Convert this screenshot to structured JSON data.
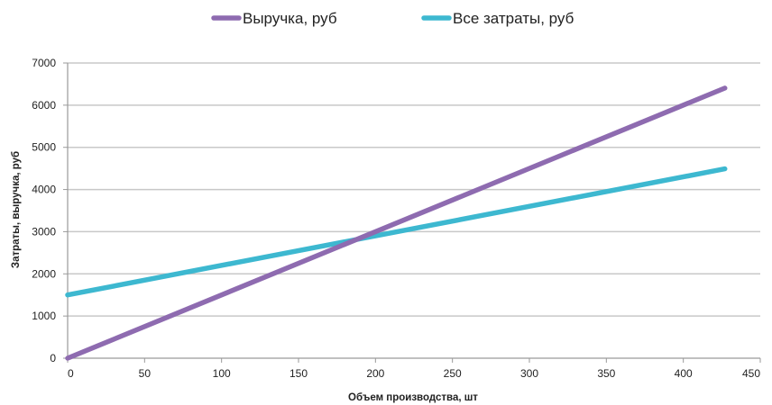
{
  "chart_data": {
    "type": "line",
    "title": "",
    "xlabel": "Объем производства, шт",
    "ylabel": "Затраты, выручка, руб",
    "xlim": [
      0,
      450
    ],
    "ylim": [
      0,
      7000
    ],
    "x_ticks": [
      0,
      50,
      100,
      150,
      200,
      250,
      300,
      350,
      400,
      450
    ],
    "y_ticks": [
      0,
      1000,
      2000,
      3000,
      4000,
      5000,
      6000,
      7000
    ],
    "grid": "horizontal",
    "legend_position": "top",
    "series": [
      {
        "name": "Выручка, руб",
        "color": "#8e6bb0",
        "x": [
          0,
          427
        ],
        "y": [
          0,
          6405
        ]
      },
      {
        "name": "Все затраты, руб",
        "color": "#3db8d0",
        "x": [
          0,
          427
        ],
        "y": [
          1500,
          4490
        ]
      }
    ]
  },
  "colors": {
    "grid": "#c8c8c8",
    "axis": "#9a9a9a",
    "text": "#222222"
  }
}
